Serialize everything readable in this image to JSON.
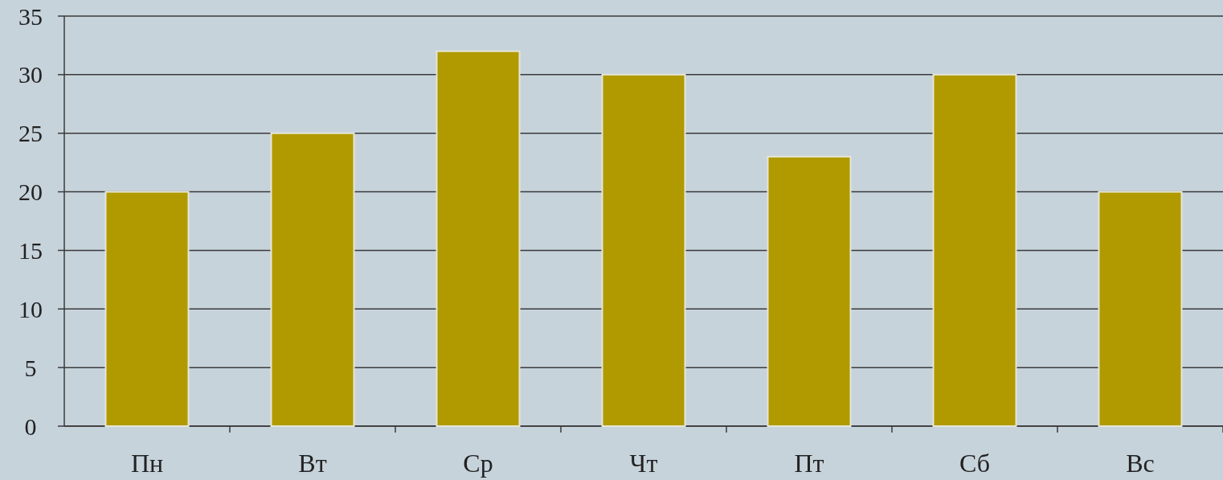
{
  "chart_data": {
    "type": "bar",
    "categories": [
      "Пн",
      "Вт",
      "Ср",
      "Чт",
      "Пт",
      "Сб",
      "Вс"
    ],
    "values": [
      20,
      25,
      32,
      30,
      23,
      30,
      20
    ],
    "color": "#b09a00",
    "ylim": [
      0,
      35
    ],
    "yticks": [
      0,
      5,
      10,
      15,
      20,
      25,
      30,
      35
    ],
    "grid": "y"
  }
}
